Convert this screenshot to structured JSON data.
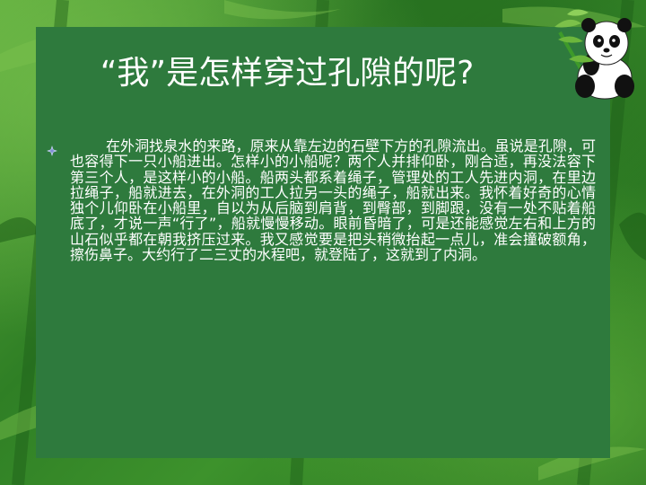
{
  "slide": {
    "title": "“我”是怎样穿过孔隙的呢?",
    "paragraph": "在外洞找泉水的来路，原来从靠左边的石壁下方的孔隙流出。虽说是孔隙，可也容得下一只小船进出。怎样小的小船呢？两个人并排仰卧，刚合适，再没法容下第三个人，是这样小的小船。船两头都系着绳子，管理处的工人先进内洞，在里边拉绳子，船就进去，在外洞的工人拉另一头的绳子，船就出来。我怀着好奇的心情独个儿仰卧在小船里，自以为从后脑到肩背，到臀部，到脚跟，没有一处不贴着船底了，才说一声“行了”，船就慢慢移动。眼前昏暗了，可是还能感觉左右和上方的山石似乎都在朝我挤压过来。我又感觉要是把头稍微抬起一点儿，准会撞破额角，擦伤鼻子。大约行了二三丈的水程吧，就登陆了，这就到了内洞。"
  },
  "decor": {
    "bullet_icon": "diamond-bullet-icon",
    "panda_icon": "panda-bamboo-icon",
    "panel_color": "#2e7a3d",
    "text_color": "#ffffff"
  }
}
